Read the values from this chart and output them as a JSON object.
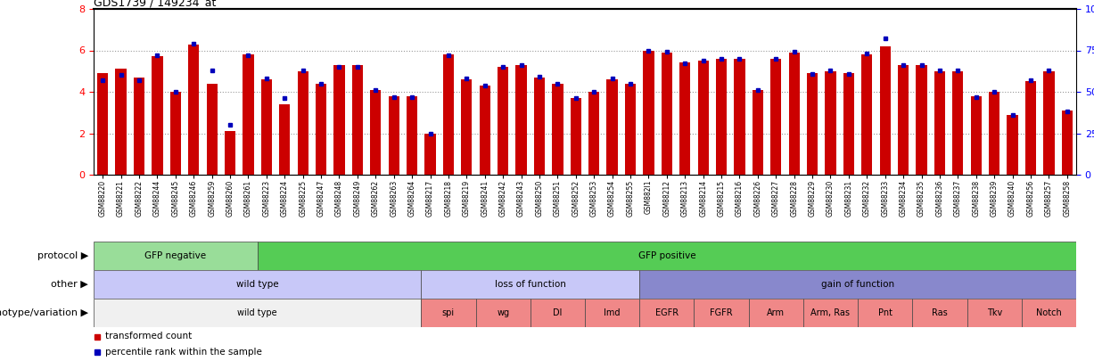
{
  "title": "GDS1739 / 149234_at",
  "samples": [
    "GSM88220",
    "GSM88221",
    "GSM88222",
    "GSM88244",
    "GSM88245",
    "GSM88246",
    "GSM88259",
    "GSM88260",
    "GSM88261",
    "GSM88223",
    "GSM88224",
    "GSM88225",
    "GSM88247",
    "GSM88248",
    "GSM88249",
    "GSM88262",
    "GSM88263",
    "GSM88264",
    "GSM88217",
    "GSM88218",
    "GSM88219",
    "GSM88241",
    "GSM88242",
    "GSM88243",
    "GSM88250",
    "GSM88251",
    "GSM88252",
    "GSM88253",
    "GSM88254",
    "GSM88255",
    "GSM882I1",
    "GSM88212",
    "GSM88213",
    "GSM88214",
    "GSM88215",
    "GSM88216",
    "GSM88226",
    "GSM88227",
    "GSM88228",
    "GSM88229",
    "GSM88230",
    "GSM88231",
    "GSM88232",
    "GSM88233",
    "GSM88234",
    "GSM88235",
    "GSM88236",
    "GSM88237",
    "GSM88238",
    "GSM88239",
    "GSM88240",
    "GSM88256",
    "GSM88257",
    "GSM88258"
  ],
  "bar_values": [
    4.9,
    5.1,
    4.7,
    5.7,
    4.0,
    6.3,
    4.4,
    2.1,
    5.8,
    4.6,
    3.4,
    5.0,
    4.4,
    5.3,
    5.3,
    4.1,
    3.8,
    3.8,
    2.0,
    5.8,
    4.6,
    4.3,
    5.2,
    5.3,
    4.7,
    4.4,
    3.7,
    4.0,
    4.6,
    4.4,
    6.0,
    5.9,
    5.4,
    5.5,
    5.6,
    5.6,
    4.1,
    5.6,
    5.9,
    4.9,
    5.0,
    4.9,
    5.8,
    6.2,
    5.3,
    5.3,
    5.0,
    5.0,
    3.8,
    4.0,
    2.9,
    4.5,
    5.0,
    3.1
  ],
  "percentile_values": [
    57,
    60,
    57,
    72,
    50,
    79,
    63,
    30,
    72,
    58,
    46,
    63,
    55,
    65,
    65,
    51,
    47,
    47,
    25,
    72,
    58,
    54,
    65,
    66,
    59,
    55,
    46,
    50,
    58,
    55,
    75,
    74,
    67,
    69,
    70,
    70,
    51,
    70,
    74,
    61,
    63,
    61,
    73,
    82,
    66,
    66,
    63,
    63,
    47,
    50,
    36,
    57,
    63,
    38
  ],
  "bar_color": "#CC0000",
  "dot_color": "#0000BB",
  "protocol_groups": [
    {
      "label": "GFP negative",
      "start": 0,
      "end": 8,
      "color": "#99DD99"
    },
    {
      "label": "GFP positive",
      "start": 9,
      "end": 53,
      "color": "#55CC55"
    }
  ],
  "other_groups": [
    {
      "label": "wild type",
      "start": 0,
      "end": 17,
      "color": "#C8C8F8"
    },
    {
      "label": "loss of function",
      "start": 18,
      "end": 29,
      "color": "#C8C8F8"
    },
    {
      "label": "gain of function",
      "start": 30,
      "end": 53,
      "color": "#8888CC"
    }
  ],
  "genotype_groups": [
    {
      "label": "wild type",
      "start": 0,
      "end": 17,
      "color": "#F0F0F0"
    },
    {
      "label": "spi",
      "start": 18,
      "end": 20,
      "color": "#F08888"
    },
    {
      "label": "wg",
      "start": 21,
      "end": 23,
      "color": "#F08888"
    },
    {
      "label": "Dl",
      "start": 24,
      "end": 26,
      "color": "#F08888"
    },
    {
      "label": "Imd",
      "start": 27,
      "end": 29,
      "color": "#F08888"
    },
    {
      "label": "EGFR",
      "start": 30,
      "end": 32,
      "color": "#F08888"
    },
    {
      "label": "FGFR",
      "start": 33,
      "end": 35,
      "color": "#F08888"
    },
    {
      "label": "Arm",
      "start": 36,
      "end": 38,
      "color": "#F08888"
    },
    {
      "label": "Arm, Ras",
      "start": 39,
      "end": 41,
      "color": "#F08888"
    },
    {
      "label": "Pnt",
      "start": 42,
      "end": 44,
      "color": "#F08888"
    },
    {
      "label": "Ras",
      "start": 45,
      "end": 47,
      "color": "#F08888"
    },
    {
      "label": "Tkv",
      "start": 48,
      "end": 50,
      "color": "#F08888"
    },
    {
      "label": "Notch",
      "start": 51,
      "end": 53,
      "color": "#F08888"
    }
  ],
  "row_labels": [
    "protocol",
    "other",
    "genotype/variation"
  ],
  "legend_labels": [
    "transformed count",
    "percentile rank within the sample"
  ],
  "legend_colors": [
    "#CC0000",
    "#0000BB"
  ]
}
